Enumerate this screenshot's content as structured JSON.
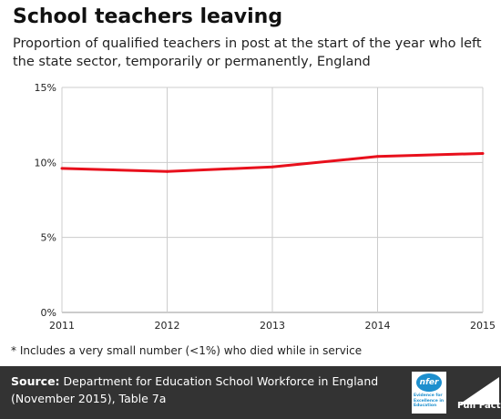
{
  "title": "School teachers leaving",
  "subtitle": "Proportion of qualified teachers in post at the start of the year who left the state sector, temporarily or permanently, England",
  "footnote": "* Includes a very small number (<1%) who died while in service",
  "source_label": "Source:",
  "source_text": "Department for Education School Workforce in England (November 2015), Table 7a",
  "logos": {
    "nfer_mark": "nfer",
    "nfer_text": "Evidence for Excellence in Education",
    "fullfact": "Full Fact"
  },
  "colors": {
    "line": "#e8101c",
    "grid": "#cccccc",
    "footer_bg": "#333333"
  },
  "chart_data": {
    "type": "line",
    "x": [
      2011,
      2012,
      2013,
      2014,
      2015
    ],
    "x_tick_labels": [
      "2011",
      "2012",
      "2013",
      "2014",
      "2015"
    ],
    "series": [
      {
        "values": [
          9.6,
          9.4,
          9.7,
          10.4,
          10.6
        ]
      }
    ],
    "ylim": [
      0,
      15
    ],
    "y_ticks": [
      0,
      5,
      10,
      15
    ],
    "y_tick_labels": [
      "0%",
      "5%",
      "10%",
      "15%"
    ],
    "grid": true,
    "legend": "none"
  }
}
